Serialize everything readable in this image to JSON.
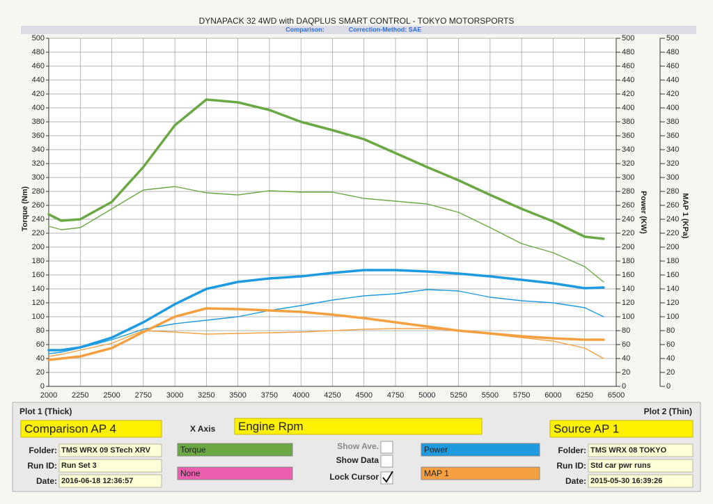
{
  "chart_data": {
    "type": "line",
    "title": "DYNAPACK 32 4WD with DAQPLUS SMART CONTROL - TOKYO MOTORSPORTS",
    "subtitle": "Comparison:",
    "correction": "Correction-Method: SAE",
    "ylabel": "Torque (Nm)",
    "y2label": "Power (KW)",
    "y3label": "MAP 1 (KPa)",
    "grid": true,
    "x": [
      2000,
      2100,
      2250,
      2500,
      2750,
      3000,
      3250,
      3500,
      3750,
      4000,
      4250,
      4500,
      4750,
      5000,
      5250,
      5500,
      5750,
      6000,
      6250,
      6400
    ],
    "xlim": [
      2000,
      6500
    ],
    "xticks": [
      2000,
      2250,
      2500,
      2750,
      3000,
      3250,
      3500,
      3750,
      4000,
      4250,
      4500,
      4750,
      5000,
      5250,
      5500,
      5750,
      6000,
      6250,
      6500
    ],
    "ylim": [
      0,
      500
    ],
    "yticks": [
      0,
      20,
      40,
      60,
      80,
      100,
      120,
      140,
      160,
      180,
      200,
      220,
      240,
      260,
      280,
      300,
      320,
      340,
      360,
      380,
      400,
      420,
      440,
      460,
      480,
      500
    ],
    "y2lim": [
      0,
      500
    ],
    "y2ticks": [
      0,
      20,
      40,
      60,
      80,
      100,
      120,
      140,
      160,
      180,
      200,
      220,
      240,
      260,
      280,
      300,
      320,
      340,
      360,
      380,
      400,
      420,
      440,
      460,
      480,
      500
    ],
    "y3lim": [
      0,
      500
    ],
    "y3ticks": [
      0,
      20,
      40,
      60,
      80,
      100,
      120,
      140,
      160,
      180,
      200,
      220,
      240,
      260,
      280,
      300,
      320,
      340,
      360,
      380,
      400,
      420,
      440,
      460,
      480,
      500
    ],
    "series": [
      {
        "color": "#6aa844",
        "line_width": 3.5,
        "axis": "y",
        "values": [
          247,
          238,
          240,
          265,
          315,
          375,
          412,
          408,
          397,
          380,
          368,
          355,
          335,
          315,
          296,
          275,
          255,
          237,
          215,
          212
        ]
      },
      {
        "color": "#6aa844",
        "line_width": 1.4,
        "axis": "y",
        "values": [
          230,
          225,
          228,
          255,
          282,
          287,
          278,
          275,
          281,
          279,
          279,
          270,
          266,
          262,
          250,
          228,
          205,
          192,
          172,
          150
        ]
      },
      {
        "color": "#1e9be0",
        "line_width": 3.5,
        "axis": "y2",
        "values": [
          52,
          52,
          56,
          70,
          92,
          118,
          140,
          150,
          155,
          158,
          163,
          167,
          167,
          165,
          162,
          158,
          153,
          148,
          141,
          142
        ]
      },
      {
        "color": "#1e9be0",
        "line_width": 1.4,
        "axis": "y2",
        "values": [
          47,
          49,
          55,
          67,
          82,
          90,
          95,
          100,
          109,
          116,
          124,
          130,
          133,
          139,
          137,
          128,
          123,
          120,
          113,
          100
        ]
      },
      {
        "color": "#f5a040",
        "line_width": 3.5,
        "axis": "y3",
        "values": [
          38,
          40,
          43,
          55,
          78,
          100,
          112,
          111,
          109,
          107,
          103,
          98,
          92,
          86,
          80,
          76,
          72,
          69,
          67,
          67
        ]
      },
      {
        "color": "#f5a040",
        "line_width": 1.4,
        "axis": "y3",
        "values": [
          43,
          46,
          52,
          62,
          80,
          78,
          75,
          76,
          77,
          78,
          80,
          82,
          83,
          83,
          80,
          75,
          70,
          65,
          55,
          40
        ]
      }
    ]
  },
  "ui": {
    "plot1_header": "Plot 1 (Thick)",
    "plot2_header": "Plot 2 (Thin)",
    "plot1_source": "Comparison AP 4",
    "plot2_source": "Source AP 1",
    "x_axis_label": "X Axis",
    "x_axis_value": "Engine Rpm",
    "plot1_fields": [
      {
        "label": "Folder:",
        "value": "TMS WRX 09 STech XRV"
      },
      {
        "label": "Run ID:",
        "value": "Run Set 3"
      },
      {
        "label": "Date:",
        "value": "2016-06-18 12:36:57"
      }
    ],
    "plot2_fields": [
      {
        "label": "Folder:",
        "value": "TMS WRX 08 TOKYO"
      },
      {
        "label": "Run ID:",
        "value": "Std car pwr runs"
      },
      {
        "label": "Date:",
        "value": "2015-05-30 16:39:26"
      }
    ],
    "channels": [
      {
        "label": "Torque",
        "color": "#6aa844"
      },
      {
        "label": "None",
        "color": "#ec5fae"
      },
      {
        "label": "Power",
        "color": "#1e9be0"
      },
      {
        "label": "MAP 1",
        "color": "#f5a040"
      }
    ],
    "options": [
      {
        "label": "Show Ave.",
        "checked": false,
        "enabled": false
      },
      {
        "label": "Show Data",
        "checked": false,
        "enabled": true
      },
      {
        "label": "Lock Cursor",
        "checked": true,
        "enabled": true
      }
    ]
  }
}
